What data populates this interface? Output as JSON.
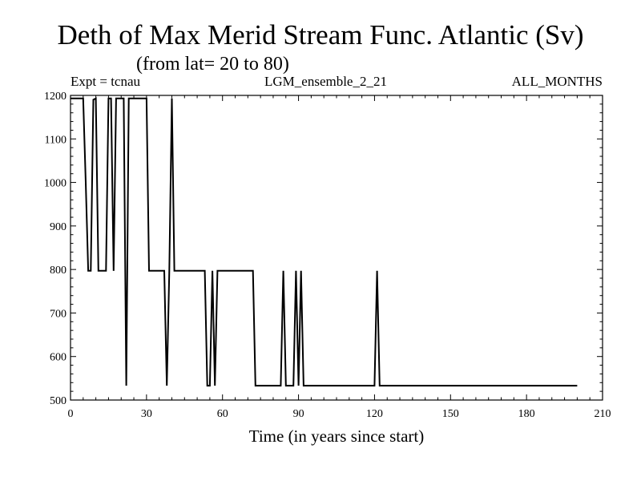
{
  "header": {
    "title": "Deth of Max Merid Stream Func. Atlantic (Sv)",
    "subtitle": "(from lat= 20 to 80)",
    "left": "Expt = tcnau",
    "middle": "LGM_ensemble_2_21",
    "right": "ALL_MONTHS"
  },
  "chart_data": {
    "type": "line",
    "title": "Deth of Max Merid Stream Func. Atlantic (Sv)",
    "subtitle": "(from lat= 20 to 80)",
    "xlabel": "Time (in years since start)",
    "ylabel": "",
    "xlim": [
      0,
      210
    ],
    "ylim": [
      500,
      1200
    ],
    "xticks": [
      0,
      30,
      60,
      90,
      120,
      150,
      180,
      210
    ],
    "yticks": [
      500,
      600,
      700,
      800,
      900,
      1000,
      1100,
      1200
    ],
    "grid": false,
    "line_color": "#000000",
    "series": [
      {
        "x": [
          0,
          5,
          6,
          7,
          8,
          9,
          10,
          11,
          14,
          15,
          16,
          17,
          18,
          19,
          20,
          21,
          22,
          23,
          24,
          25,
          29,
          30,
          31,
          32,
          36,
          37,
          38,
          39,
          40,
          41,
          53,
          54,
          55,
          56,
          57,
          58,
          59,
          72,
          73,
          74,
          83,
          84,
          85,
          86,
          87,
          88,
          89,
          90,
          91,
          92,
          93,
          94,
          95,
          120,
          121,
          122,
          200
        ],
        "y": [
          1193,
          1193,
          1000,
          797,
          797,
          1190,
          1193,
          797,
          797,
          1193,
          1193,
          797,
          1193,
          1193,
          1193,
          1193,
          533,
          1193,
          1193,
          1193,
          1193,
          1193,
          797,
          797,
          797,
          797,
          533,
          797,
          1193,
          797,
          797,
          533,
          533,
          797,
          533,
          797,
          797,
          797,
          533,
          533,
          533,
          797,
          533,
          533,
          533,
          533,
          797,
          533,
          797,
          533,
          533,
          533,
          533,
          533,
          797,
          533,
          533
        ]
      }
    ]
  }
}
